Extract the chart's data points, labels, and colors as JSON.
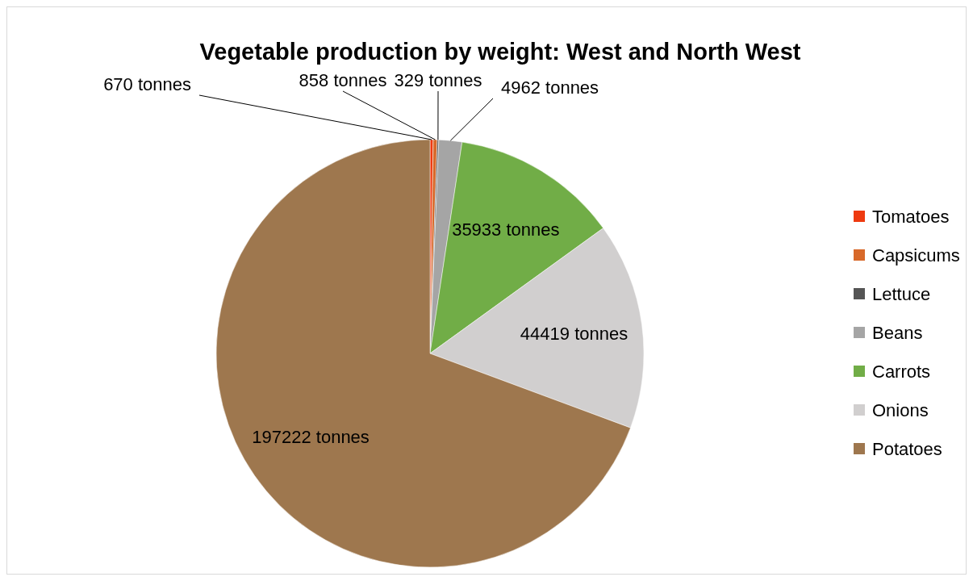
{
  "chart_data": {
    "type": "pie",
    "title": "Vegetable production by weight: West and North West",
    "categories": [
      "Tomatoes",
      "Capsicums",
      "Lettuce",
      "Beans",
      "Carrots",
      "Onions",
      "Potatoes"
    ],
    "values": [
      670,
      858,
      329,
      4962,
      35933,
      44419,
      197222
    ],
    "value_labels": [
      "670 tonnes",
      "858 tonnes",
      "329 tonnes",
      "4962 tonnes",
      "35933 tonnes",
      "44419 tonnes",
      "197222 tonnes"
    ],
    "colors": [
      "#ee3a10",
      "#d8692a",
      "#555555",
      "#a5a5a5",
      "#71ad47",
      "#d1cfcf",
      "#9e774e"
    ],
    "legend": "right"
  }
}
